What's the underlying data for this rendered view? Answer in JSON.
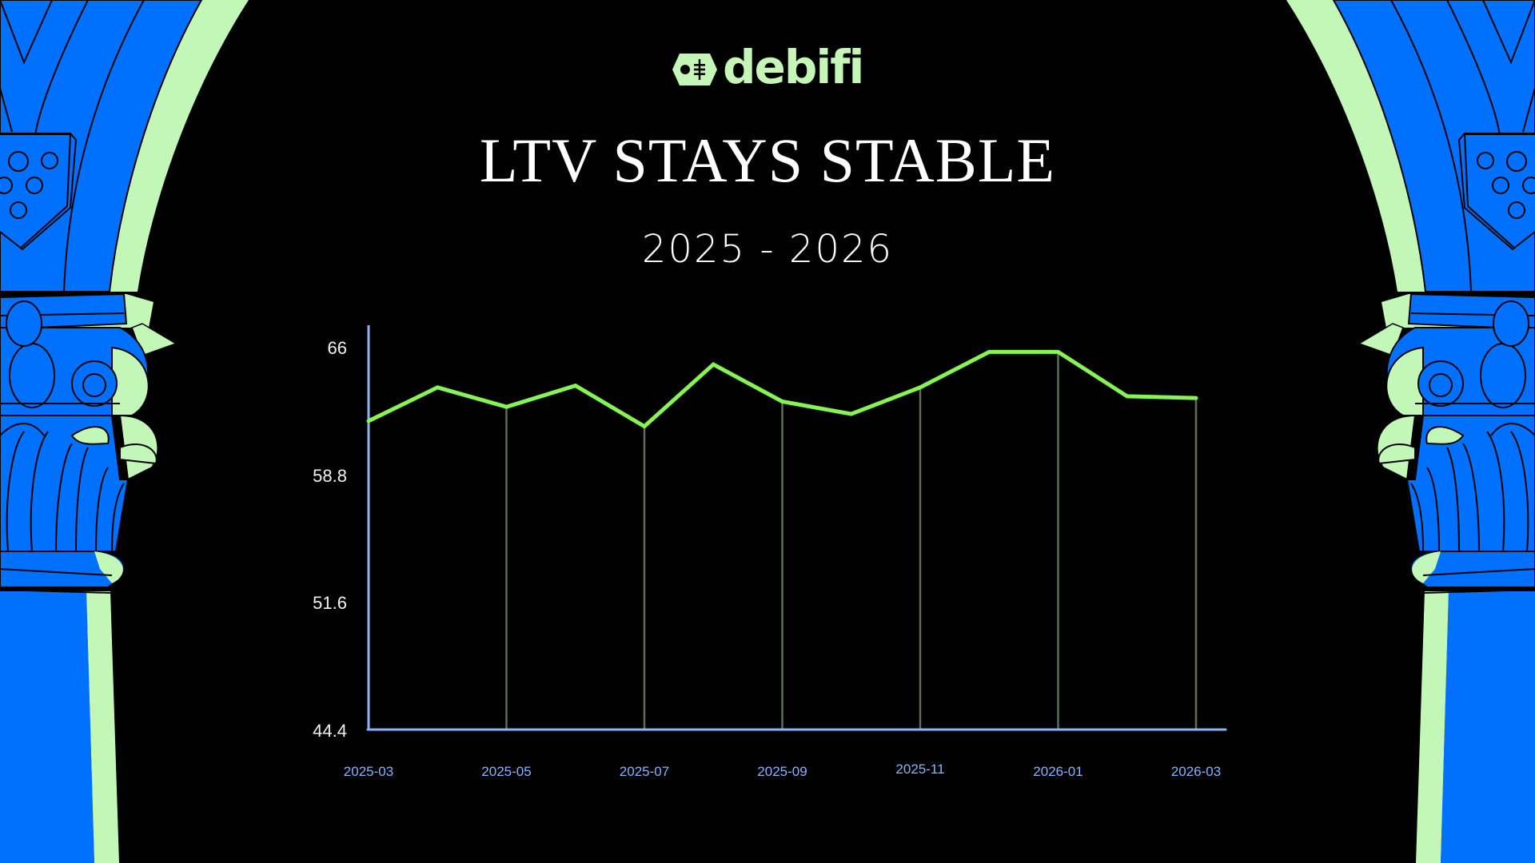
{
  "brand": {
    "name": "debifi",
    "color": "#C6F5B8",
    "icon": "tag-icon"
  },
  "header": {
    "title": "LTV STAYS STABLE",
    "subtitle": "2025 - 2026"
  },
  "colors": {
    "background": "#000000",
    "column_blue": "#0070FF",
    "column_highlight": "#C2F7B8",
    "line": "#86F452",
    "axis": "#8AB4F8",
    "gridline": "#5E6E58",
    "ytick_text": "#F2F2F2",
    "xtick_text": "#8AB4F8"
  },
  "chart_data": {
    "type": "line",
    "title": "LTV STAYS STABLE",
    "subtitle": "2025 - 2026",
    "xlabel": "",
    "ylabel": "",
    "x": [
      "2025-03",
      "2025-04",
      "2025-05",
      "2025-06",
      "2025-07",
      "2025-08",
      "2025-09",
      "2025-10",
      "2025-11",
      "2025-12",
      "2026-01",
      "2026-02",
      "2026-03"
    ],
    "series": [
      {
        "name": "LTV",
        "values": [
          61.9,
          63.8,
          62.7,
          63.9,
          61.6,
          65.1,
          63.0,
          62.3,
          63.8,
          65.8,
          65.8,
          63.3,
          63.2
        ]
      }
    ],
    "yticks": [
      "66",
      "58.8",
      "51.6",
      "44.4"
    ],
    "ytick_values": [
      66,
      58.8,
      51.6,
      44.4
    ],
    "xticks": [
      "2025-03",
      "2025-05",
      "2025-07",
      "2025-09",
      "2025-11",
      "2026-01",
      "2026-03"
    ],
    "ylim": [
      44.4,
      67.2
    ],
    "grid": "vertical lines at labeled x ticks",
    "legend": "none"
  }
}
